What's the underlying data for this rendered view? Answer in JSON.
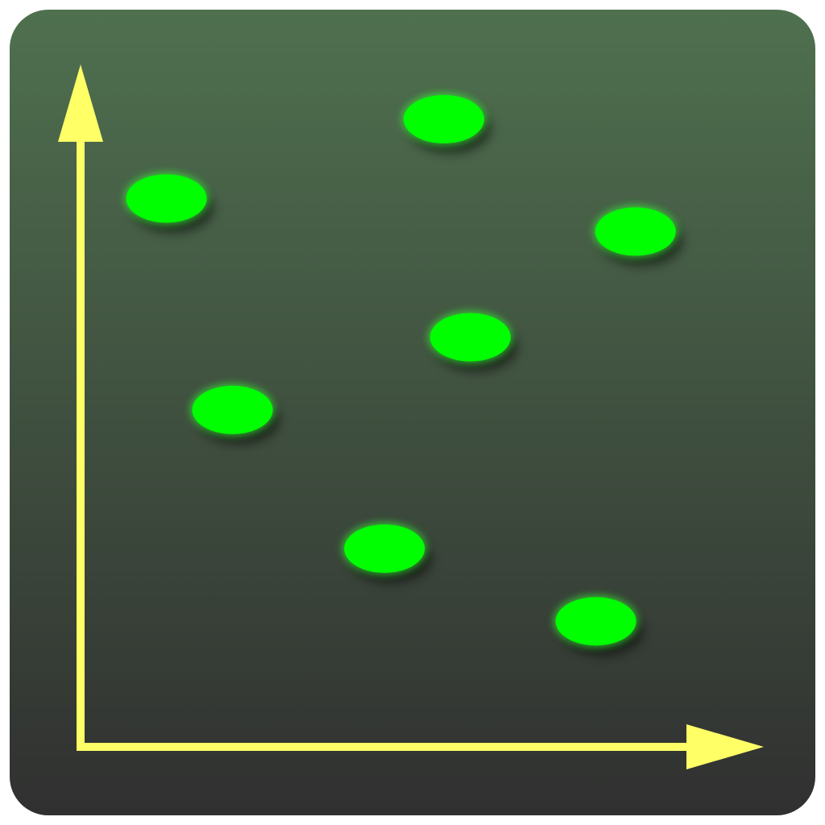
{
  "colors": {
    "background_top": "#4f704f",
    "background_bottom": "#303030",
    "axis": "#ffff66",
    "point": "#00ff00",
    "point_glow": "#33ff33"
  },
  "chart_data": {
    "type": "scatter",
    "title": "",
    "xlabel": "",
    "ylabel": "",
    "xlim": [
      0,
      100
    ],
    "ylim": [
      0,
      100
    ],
    "grid": false,
    "legend": "none",
    "points": [
      {
        "x": 13,
        "y": 83
      },
      {
        "x": 55,
        "y": 95
      },
      {
        "x": 84,
        "y": 78
      },
      {
        "x": 59,
        "y": 62
      },
      {
        "x": 23,
        "y": 51
      },
      {
        "x": 46,
        "y": 30
      },
      {
        "x": 78,
        "y": 19
      }
    ]
  }
}
